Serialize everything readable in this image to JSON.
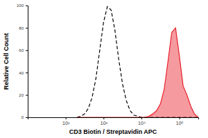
{
  "chart_data": {
    "type": "line",
    "x_label": "CD3 Biotin / Streptavidin APC",
    "y_label": "Relative Cell Count",
    "log": "x",
    "x": [
      200,
      251,
      316,
      398,
      501,
      631,
      794,
      1000,
      1259,
      1585,
      1995,
      2512,
      3162,
      3981,
      5012,
      6310,
      7943,
      10000,
      12589,
      15849,
      19953,
      25119,
      31623,
      39811,
      50119,
      63096,
      79433,
      100000,
      125893,
      158489,
      199526,
      251189,
      316228
    ],
    "series": [
      {
        "type": "line",
        "line_style": "dashed",
        "color": "#000000",
        "values": [
          0,
          1,
          3,
          8,
          18,
          35,
          60,
          85,
          99,
          96,
          78,
          52,
          30,
          15,
          6,
          2,
          1,
          0,
          0,
          0,
          0,
          0,
          0,
          0,
          0,
          0,
          0,
          0,
          0,
          0,
          0,
          0,
          0
        ]
      },
      {
        "type": "area",
        "line_style": "solid",
        "color": "#e8202a",
        "values": [
          0,
          0,
          0,
          0,
          0,
          0,
          0,
          0,
          0,
          0,
          0,
          0,
          0,
          0,
          0,
          0,
          0,
          0,
          0,
          1,
          3,
          6,
          12,
          25,
          50,
          76,
          80,
          55,
          28,
          20,
          10,
          3,
          0
        ]
      }
    ],
    "xlim": [
      10,
      316228
    ],
    "xticks": [
      {
        "value": 100,
        "label": "10²"
      },
      {
        "value": 1000,
        "label": "10³"
      },
      {
        "value": 10000,
        "label": "10⁴"
      },
      {
        "value": 100000,
        "label": "10⁵"
      }
    ],
    "ylim": [
      0,
      100
    ],
    "yticks": [
      0,
      20,
      40,
      60,
      80,
      100
    ],
    "grid": false
  }
}
